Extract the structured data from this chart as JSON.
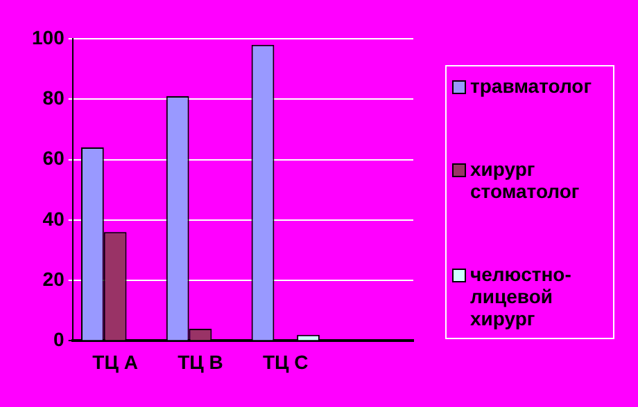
{
  "chart_data": {
    "type": "bar",
    "categories": [
      "ТЦ А",
      "ТЦ В",
      "ТЦ С",
      null
    ],
    "series": [
      {
        "name": "травматолог",
        "color": "#9999ff",
        "values": [
          64,
          81,
          98,
          null
        ]
      },
      {
        "name": "хирург стоматолог",
        "color": "#993366",
        "values": [
          36,
          4,
          0,
          null
        ]
      },
      {
        "name": "челюстно-лицевой хирург",
        "color": "#ccffff",
        "values": [
          0,
          0,
          2,
          null
        ]
      }
    ],
    "ylim": [
      0,
      100
    ],
    "yticks": [
      0,
      20,
      40,
      60,
      80,
      100
    ],
    "grid": "y",
    "legend": "right"
  }
}
